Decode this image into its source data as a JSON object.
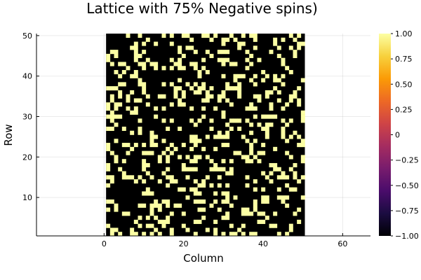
{
  "chart_data": {
    "type": "heatmap",
    "title": "Lattice with 75% Negative spins)",
    "xlabel": "Column",
    "ylabel": "Row",
    "grid_size": 50,
    "xlim": [
      -17,
      67
    ],
    "ylim": [
      0.5,
      50.5
    ],
    "xticks": [
      0,
      20,
      40,
      60
    ],
    "yticks": [
      10,
      20,
      30,
      40,
      50
    ],
    "colorbar": {
      "range": [
        -1.0,
        1.0
      ],
      "ticks": [
        "1.00",
        "0.75",
        "0.50",
        "0.25",
        "0",
        "−0.25",
        "−0.50",
        "−0.75",
        "−1.00"
      ],
      "colormap": "inferno",
      "colors": [
        "#000004",
        "#1b0c41",
        "#4a0c6b",
        "#781c6d",
        "#a52c60",
        "#cf4446",
        "#ed6925",
        "#fb9b06",
        "#f7d13d",
        "#fcffa4"
      ]
    },
    "values": {
      "negative": -1,
      "positive": 1
    },
    "cell_colors": {
      "negative": "#000000",
      "positive": "#fcffa4"
    },
    "negative_fraction": 0.75,
    "grid_on": true
  }
}
